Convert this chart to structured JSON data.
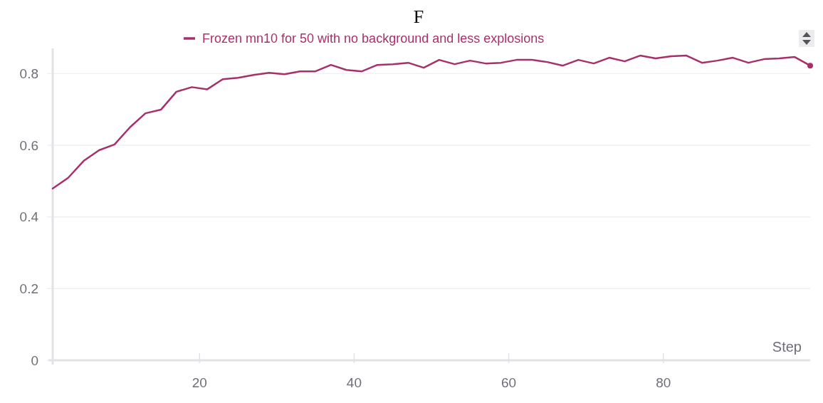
{
  "chart_data": {
    "type": "line",
    "title": "F",
    "xlabel": "Step",
    "x": [
      1,
      3,
      5,
      7,
      9,
      11,
      13,
      15,
      17,
      19,
      21,
      23,
      25,
      27,
      29,
      31,
      33,
      35,
      37,
      39,
      41,
      43,
      45,
      47,
      49,
      51,
      53,
      55,
      57,
      59,
      61,
      63,
      65,
      67,
      69,
      71,
      73,
      75,
      77,
      79,
      81,
      83,
      85,
      87,
      89,
      91,
      93,
      95,
      97,
      99
    ],
    "series": [
      {
        "name": "Frozen mn10 for 50 with no background and less explosions",
        "color": "#a8306a",
        "values": [
          0.479,
          0.509,
          0.556,
          0.586,
          0.602,
          0.65,
          0.689,
          0.699,
          0.749,
          0.762,
          0.756,
          0.784,
          0.788,
          0.796,
          0.802,
          0.798,
          0.806,
          0.806,
          0.824,
          0.81,
          0.806,
          0.824,
          0.826,
          0.83,
          0.816,
          0.838,
          0.826,
          0.836,
          0.828,
          0.83,
          0.838,
          0.838,
          0.832,
          0.822,
          0.838,
          0.828,
          0.844,
          0.834,
          0.85,
          0.842,
          0.848,
          0.85,
          0.83,
          0.836,
          0.844,
          0.83,
          0.84,
          0.842,
          0.846,
          0.822
        ]
      }
    ],
    "xlim": [
      1,
      99
    ],
    "xticks": [
      20,
      40,
      60,
      80
    ],
    "ylim": [
      0,
      0.87
    ],
    "yticks": [
      0,
      0.2,
      0.4,
      0.6,
      0.8
    ],
    "grid": "y",
    "legend": "top",
    "line_style": "solid"
  }
}
